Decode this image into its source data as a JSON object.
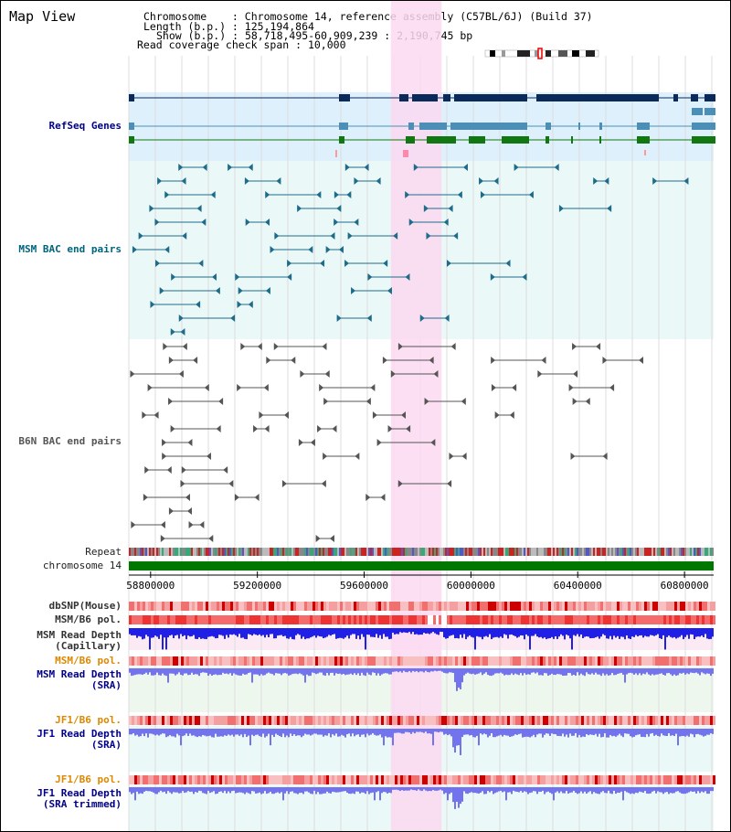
{
  "title": "Map View",
  "info": {
    "chromosome_label": "Chromosome    :",
    "chromosome_value": "Chromosome 14, reference assembly (C57BL/6J) (Build 37)",
    "length_label": "Length (b.p.) :",
    "length_value": "125,194,864",
    "show_label": "Show (b.p.) :",
    "show_value": "58,718,495-60,909,239 : 2,190,745 bp",
    "span_label": "Read coverage check span :",
    "span_value": "10,000"
  },
  "labels": {
    "refseq": "RefSeq Genes",
    "msm_bac": "MSM BAC end pairs",
    "b6n_bac": "B6N BAC end pairs",
    "repeat": "Repeat",
    "chromosome": "chromosome 14",
    "dbsnp": "dbSNP(Mouse)",
    "msm_pol_1": "MSM/B6 pol.",
    "msm_depth_cap": "MSM Read Depth\n(Capillary)",
    "msm_pol_2": "MSM/B6 pol.",
    "msm_depth_sra": "MSM Read Depth\n(SRA)",
    "jf1_pol_1": "JF1/B6 pol.",
    "jf1_depth_sra": "JF1 Read Depth\n(SRA)",
    "jf1_pol_2": "JF1/B6 pol.",
    "jf1_depth_trim": "JF1 Read Depth\n(SRA trimmed)"
  },
  "axis": {
    "ticks": [
      "58800000",
      "59200000",
      "59600000",
      "60000000",
      "60400000",
      "60800000"
    ],
    "tick_values": [
      58800000,
      59200000,
      59600000,
      60000000,
      60400000,
      60800000
    ],
    "range": [
      58718495,
      60909239
    ]
  },
  "highlight_region": [
    59700000,
    59890000
  ],
  "colors": {
    "refseq_bg": "#ddf0fb",
    "bac_bg": "#eaf8f8",
    "highlight": "#fbd9f1",
    "gene_navy": "#0a2a5c",
    "gene_blue": "#4b8fb6",
    "gene_green": "#117711",
    "msm_pair": "#1e6b8a",
    "b6n_pair": "#555555",
    "chromosome_bar": "#007700",
    "depth_blue": "#1f1fe6",
    "depth_light": "#7373ee"
  }
}
